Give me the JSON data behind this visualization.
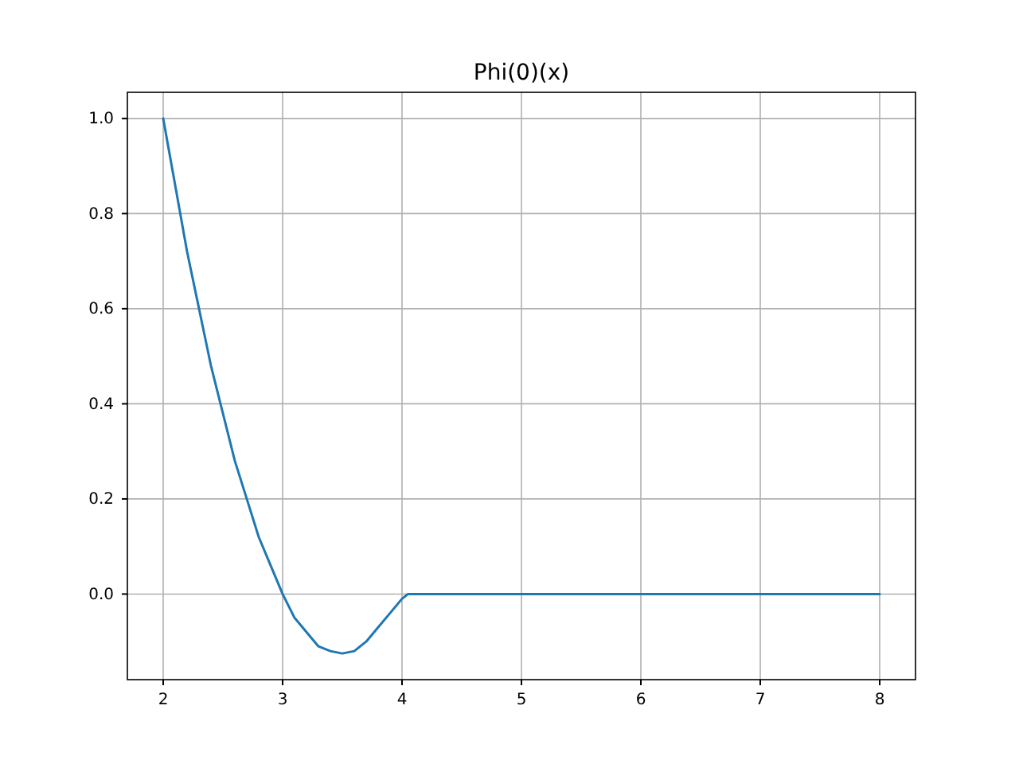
{
  "chart_data": {
    "type": "line",
    "title": "Phi(0)(x)",
    "x": [
      2,
      2.1,
      2.2,
      2.3,
      2.4,
      2.5,
      2.6,
      2.7,
      2.8,
      2.9,
      3.0,
      3.1,
      3.2,
      3.3,
      3.4,
      3.5,
      3.6,
      3.7,
      3.8,
      3.9,
      4.0,
      4.05,
      8
    ],
    "series": [
      {
        "color": "#1f77b4",
        "values": [
          1,
          0.86,
          0.72,
          0.6,
          0.48,
          0.38,
          0.28,
          0.2,
          0.12,
          0.06,
          0,
          -0.05,
          -0.08,
          -0.11,
          -0.12,
          -0.125,
          -0.12,
          -0.1,
          -0.07,
          -0.04,
          -0.01,
          0,
          0
        ]
      }
    ],
    "xlim": [
      1.7,
      8.3
    ],
    "xticks": [
      2,
      3,
      4,
      5,
      6,
      7,
      8
    ],
    "ylim": [
      -0.18,
      1.055
    ],
    "yticks": [
      {
        "value": 0,
        "label": "0.0"
      },
      {
        "value": 0.2,
        "label": "0.2"
      },
      {
        "value": 0.4,
        "label": "0.4"
      },
      {
        "value": 0.6,
        "label": "0.6"
      },
      {
        "value": 0.8,
        "label": "0.8"
      },
      {
        "value": 1,
        "label": "1.0"
      }
    ],
    "grid": true,
    "line_style": "solid"
  }
}
